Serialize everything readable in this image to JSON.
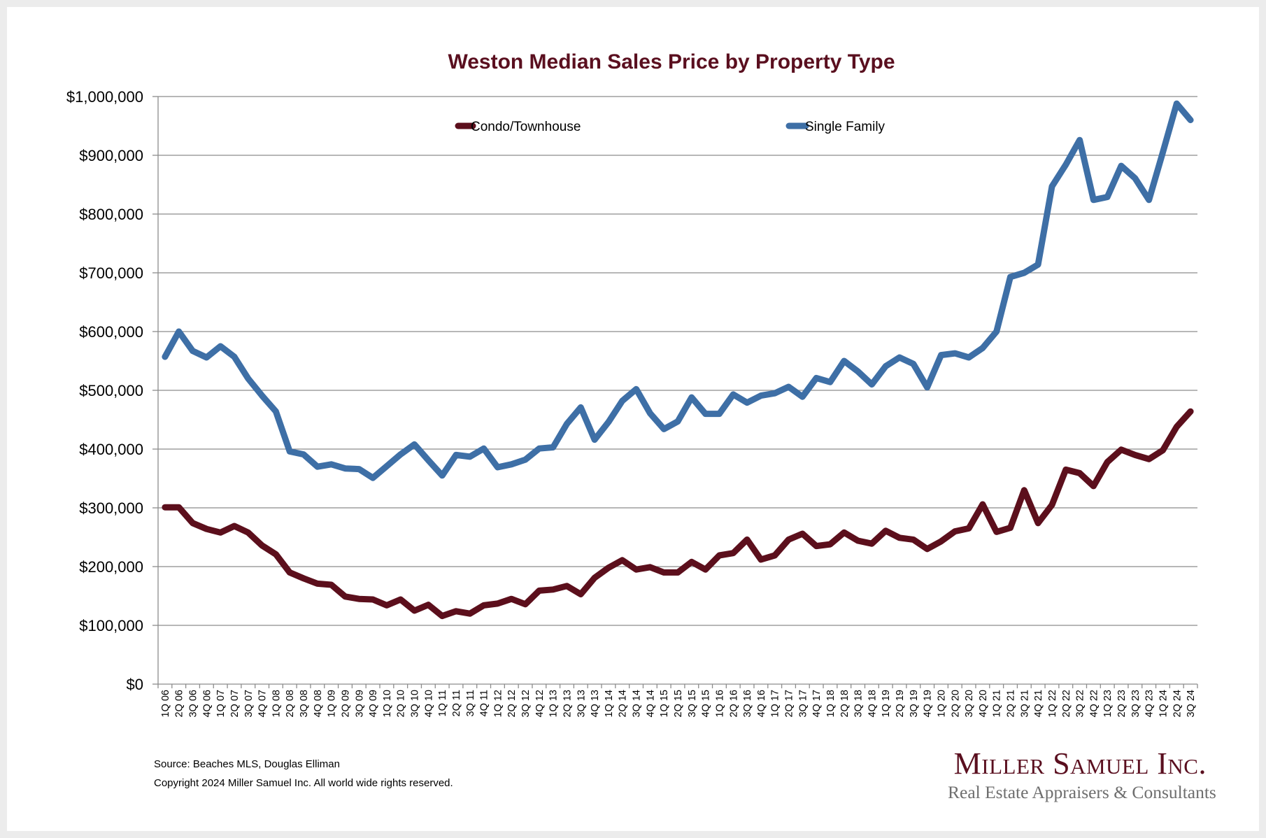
{
  "footer": {
    "source": "Source: Beaches MLS, Douglas Elliman",
    "copyright": "Copyright 2024 Miller Samuel Inc.  All world wide rights reserved."
  },
  "logo": {
    "name": "Miller Samuel Inc.",
    "tagline": "Real Estate Appraisers & Consultants"
  },
  "colors": {
    "title": "#5a0f1f",
    "condo": "#5c0f1c",
    "single_family": "#3e6fa6"
  },
  "chart_data": {
    "type": "line",
    "title": "Weston Median Sales Price by Property Type",
    "xlabel": "",
    "ylabel": "",
    "ylim": [
      0,
      1000000
    ],
    "y_ticks": [
      0,
      100000,
      200000,
      300000,
      400000,
      500000,
      600000,
      700000,
      800000,
      900000,
      1000000
    ],
    "y_tick_labels": [
      "$0",
      "$100,000",
      "$200,000",
      "$300,000",
      "$400,000",
      "$500,000",
      "$600,000",
      "$700,000",
      "$800,000",
      "$900,000",
      "$1,000,000"
    ],
    "grid": "horizontal",
    "legend_position": "top",
    "categories": [
      "1Q 06",
      "2Q 06",
      "3Q 06",
      "4Q 06",
      "1Q 07",
      "2Q 07",
      "3Q 07",
      "4Q 07",
      "1Q 08",
      "2Q 08",
      "3Q 08",
      "4Q 08",
      "1Q 09",
      "2Q 09",
      "3Q 09",
      "4Q 09",
      "1Q 10",
      "2Q 10",
      "3Q 10",
      "4Q 10",
      "1Q 11",
      "2Q 11",
      "3Q 11",
      "4Q 11",
      "1Q 12",
      "2Q 12",
      "3Q 12",
      "4Q 12",
      "1Q 13",
      "2Q 13",
      "3Q 13",
      "4Q 13",
      "1Q 14",
      "2Q 14",
      "3Q 14",
      "4Q 14",
      "1Q 15",
      "2Q 15",
      "3Q 15",
      "4Q 15",
      "1Q 16",
      "2Q 16",
      "3Q 16",
      "4Q 16",
      "1Q 17",
      "2Q 17",
      "3Q 17",
      "4Q 17",
      "1Q 18",
      "2Q 18",
      "3Q 18",
      "4Q 18",
      "1Q 19",
      "2Q 19",
      "3Q 19",
      "4Q 19",
      "1Q 20",
      "2Q 20",
      "3Q 20",
      "4Q 20",
      "1Q 21",
      "2Q 21",
      "3Q 21",
      "4Q 21",
      "1Q 22",
      "2Q 22",
      "3Q 22",
      "4Q 22",
      "1Q 23",
      "2Q 23",
      "3Q 23",
      "4Q 23",
      "1Q 24",
      "2Q 24",
      "3Q 24"
    ],
    "series": [
      {
        "name": "Condo/Townhouse",
        "color": "#5c0f1c",
        "values": [
          301000,
          301000,
          274000,
          264000,
          258000,
          269000,
          258000,
          236000,
          221000,
          190000,
          180000,
          171000,
          169000,
          149000,
          145000,
          144000,
          134000,
          144000,
          125000,
          135000,
          116000,
          124000,
          120000,
          134000,
          137000,
          145000,
          136000,
          159000,
          161000,
          167000,
          153000,
          181000,
          198000,
          211000,
          195000,
          199000,
          190000,
          190000,
          208000,
          195000,
          219000,
          223000,
          246000,
          212000,
          219000,
          246000,
          256000,
          235000,
          238000,
          258000,
          244000,
          239000,
          261000,
          249000,
          246000,
          230000,
          243000,
          260000,
          265000,
          306000,
          259000,
          266000,
          330000,
          274000,
          305000,
          365000,
          359000,
          337000,
          378000,
          399000,
          390000,
          383000,
          398000,
          438000,
          464000
        ]
      },
      {
        "name": "Single Family",
        "color": "#3e6fa6",
        "values": [
          557000,
          600000,
          567000,
          556000,
          575000,
          557000,
          520000,
          491000,
          464000,
          396000,
          391000,
          370000,
          374000,
          367000,
          366000,
          351000,
          371000,
          391000,
          408000,
          381000,
          355000,
          390000,
          387000,
          401000,
          369000,
          374000,
          382000,
          401000,
          403000,
          443000,
          471000,
          416000,
          446000,
          482000,
          502000,
          461000,
          434000,
          447000,
          488000,
          460000,
          460000,
          493000,
          479000,
          491000,
          495000,
          506000,
          489000,
          521000,
          514000,
          550000,
          532000,
          510000,
          541000,
          556000,
          545000,
          505000,
          560000,
          563000,
          556000,
          572000,
          600000,
          693000,
          700000,
          714000,
          847000,
          884000,
          926000,
          824000,
          829000,
          882000,
          861000,
          824000,
          905000,
          988000,
          960000
        ]
      }
    ]
  }
}
